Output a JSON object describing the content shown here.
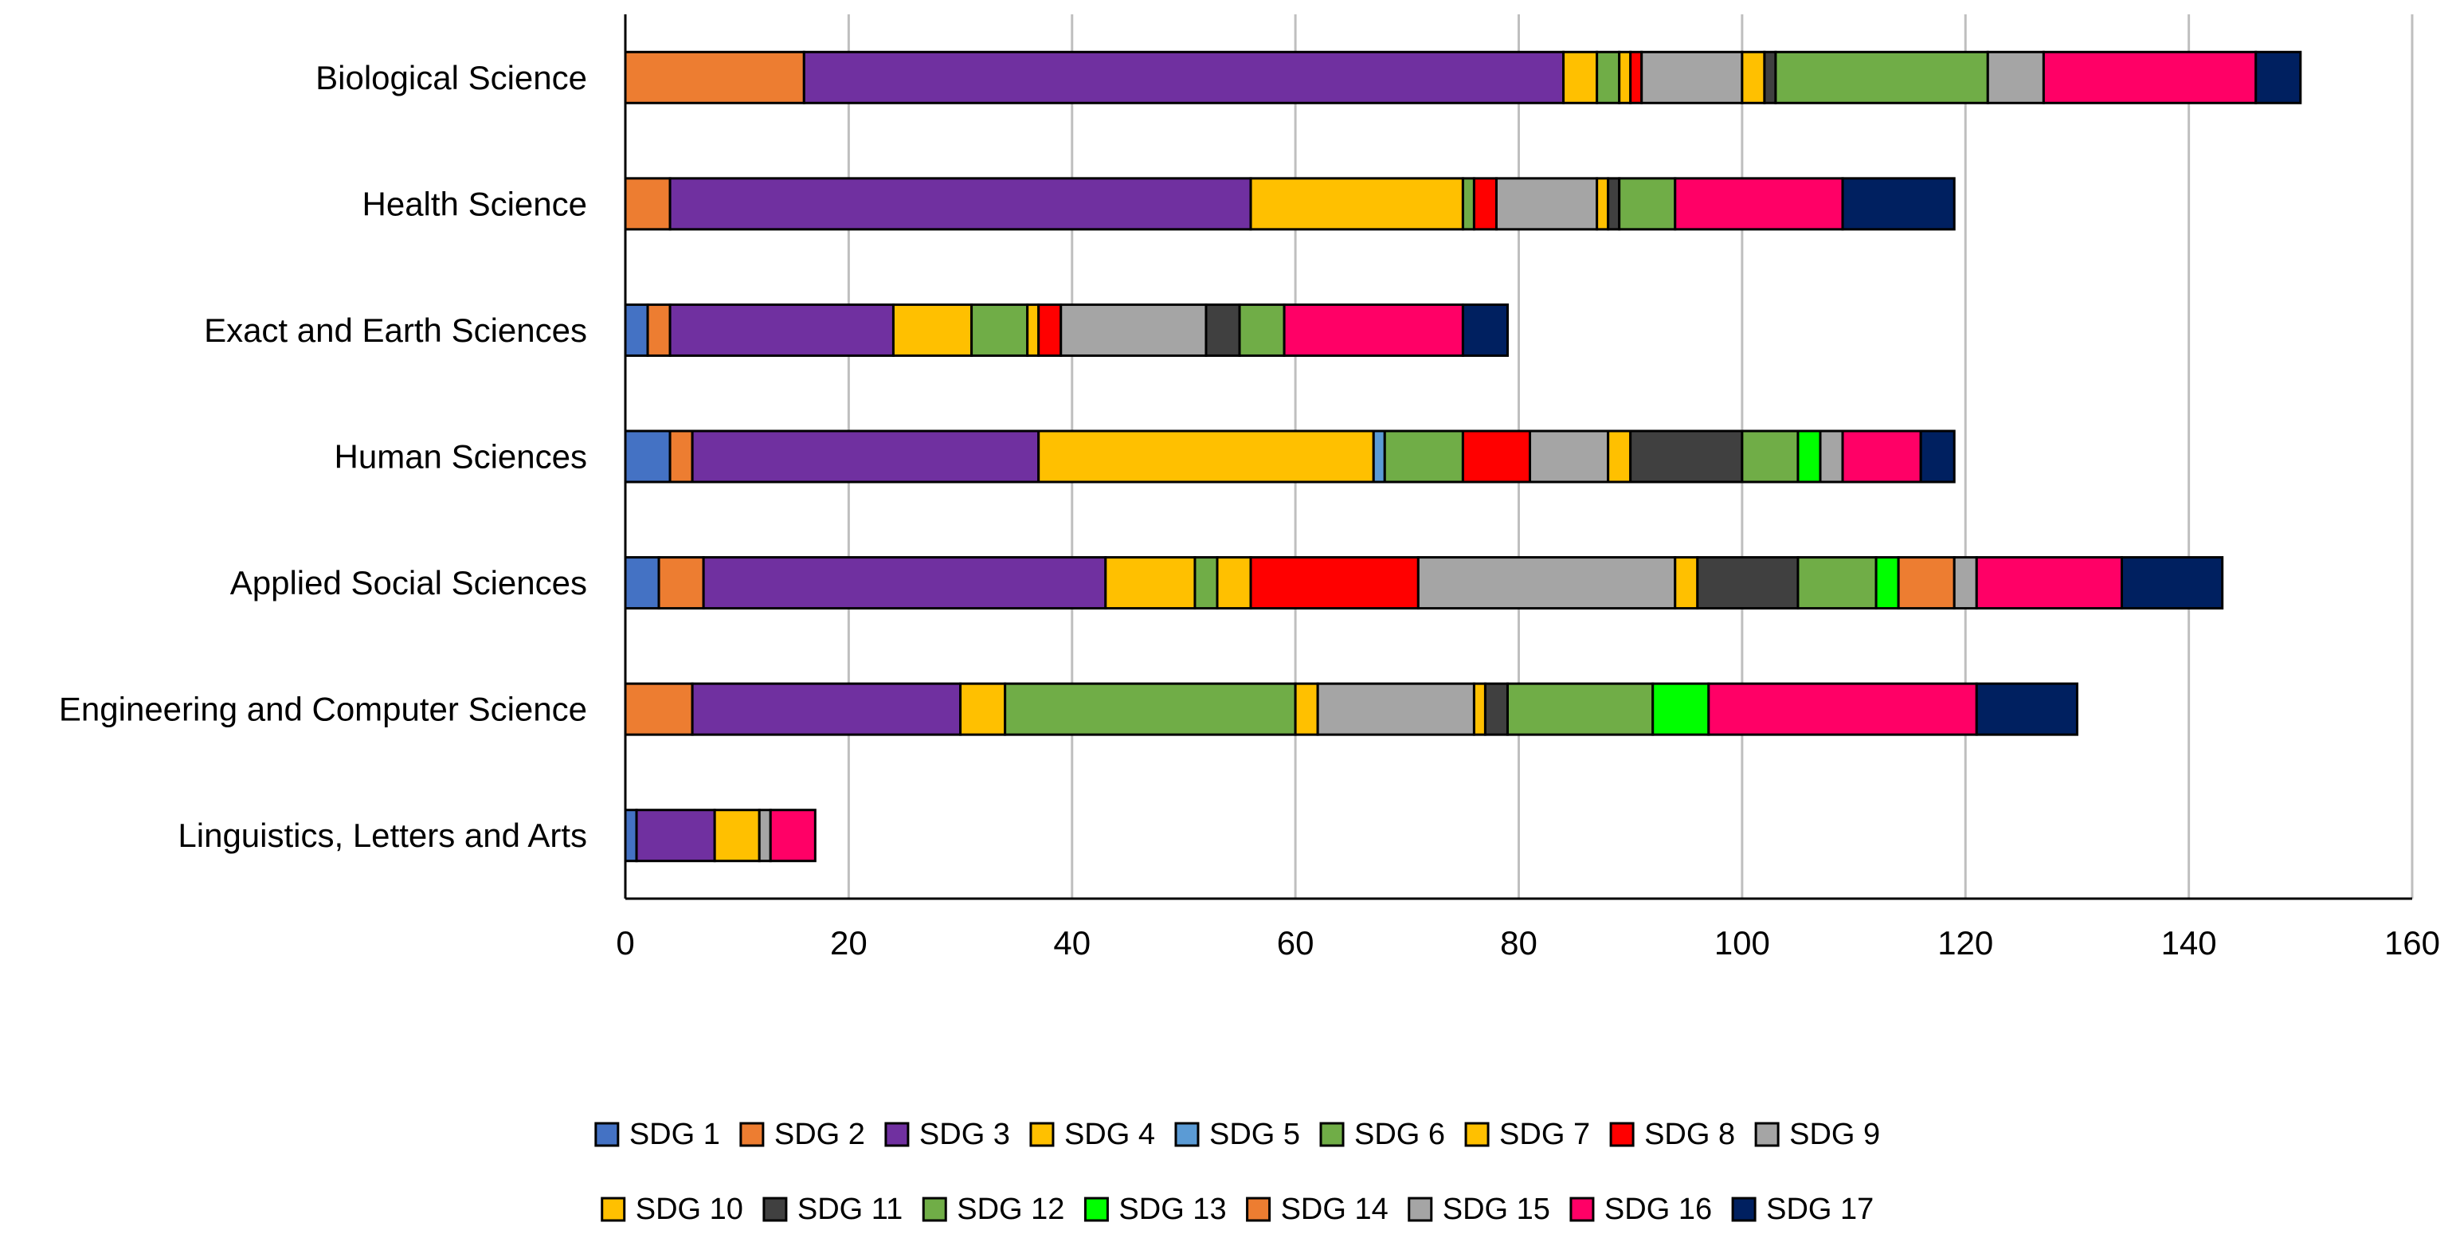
{
  "chart_data": {
    "type": "bar",
    "orientation": "horizontal",
    "stacked": true,
    "categories": [
      "Biological Science",
      "Health Science",
      "Exact and Earth Sciences",
      "Human Sciences",
      "Applied Social Sciences",
      "Engineering and Computer Science",
      "Linguistics, Letters and Arts"
    ],
    "xlim": [
      0,
      160
    ],
    "x_ticks": [
      "0",
      "20",
      "40",
      "60",
      "80",
      "100",
      "120",
      "140",
      "160"
    ],
    "grid": "vertical",
    "legend_position": "bottom",
    "series": [
      {
        "name": "SDG 1",
        "color": "#4472C4",
        "values": [
          0,
          0,
          2,
          4,
          3,
          0,
          1
        ]
      },
      {
        "name": "SDG 2",
        "color": "#ED7D31",
        "values": [
          16,
          4,
          2,
          2,
          4,
          6,
          0
        ]
      },
      {
        "name": "SDG 3",
        "color": "#7030A0",
        "values": [
          68,
          52,
          20,
          31,
          36,
          24,
          7
        ]
      },
      {
        "name": "SDG 4",
        "color": "#FFC000",
        "values": [
          3,
          19,
          7,
          30,
          8,
          4,
          4
        ]
      },
      {
        "name": "SDG 5",
        "color": "#5B9BD5",
        "values": [
          0,
          0,
          0,
          1,
          0,
          0,
          0
        ]
      },
      {
        "name": "SDG 6",
        "color": "#70AD47",
        "values": [
          2,
          1,
          5,
          7,
          2,
          26,
          0
        ]
      },
      {
        "name": "SDG 7",
        "color": "#FFC000",
        "values": [
          1,
          0,
          1,
          0,
          3,
          2,
          0
        ]
      },
      {
        "name": "SDG 8",
        "color": "#FF0000",
        "values": [
          1,
          2,
          2,
          6,
          15,
          0,
          0
        ]
      },
      {
        "name": "SDG 9",
        "color": "#A5A5A5",
        "values": [
          9,
          9,
          13,
          7,
          23,
          14,
          1
        ]
      },
      {
        "name": "SDG 10",
        "color": "#FFC000",
        "values": [
          2,
          1,
          0,
          2,
          2,
          1,
          0
        ]
      },
      {
        "name": "SDG 11",
        "color": "#404040",
        "values": [
          1,
          1,
          3,
          10,
          9,
          2,
          0
        ]
      },
      {
        "name": "SDG 12",
        "color": "#70AD47",
        "values": [
          19,
          5,
          4,
          5,
          7,
          13,
          0
        ]
      },
      {
        "name": "SDG 13",
        "color": "#00FF00",
        "values": [
          0,
          0,
          0,
          2,
          2,
          5,
          0
        ]
      },
      {
        "name": "SDG 14",
        "color": "#ED7D31",
        "values": [
          0,
          0,
          0,
          0,
          5,
          0,
          0
        ]
      },
      {
        "name": "SDG 15",
        "color": "#A5A5A5",
        "values": [
          5,
          0,
          0,
          2,
          2,
          0,
          0
        ]
      },
      {
        "name": "SDG 16",
        "color": "#FF0066",
        "values": [
          19,
          15,
          16,
          7,
          13,
          24,
          4
        ]
      },
      {
        "name": "SDG 17",
        "color": "#002060",
        "values": [
          4,
          10,
          4,
          3,
          9,
          9,
          0
        ]
      }
    ]
  }
}
